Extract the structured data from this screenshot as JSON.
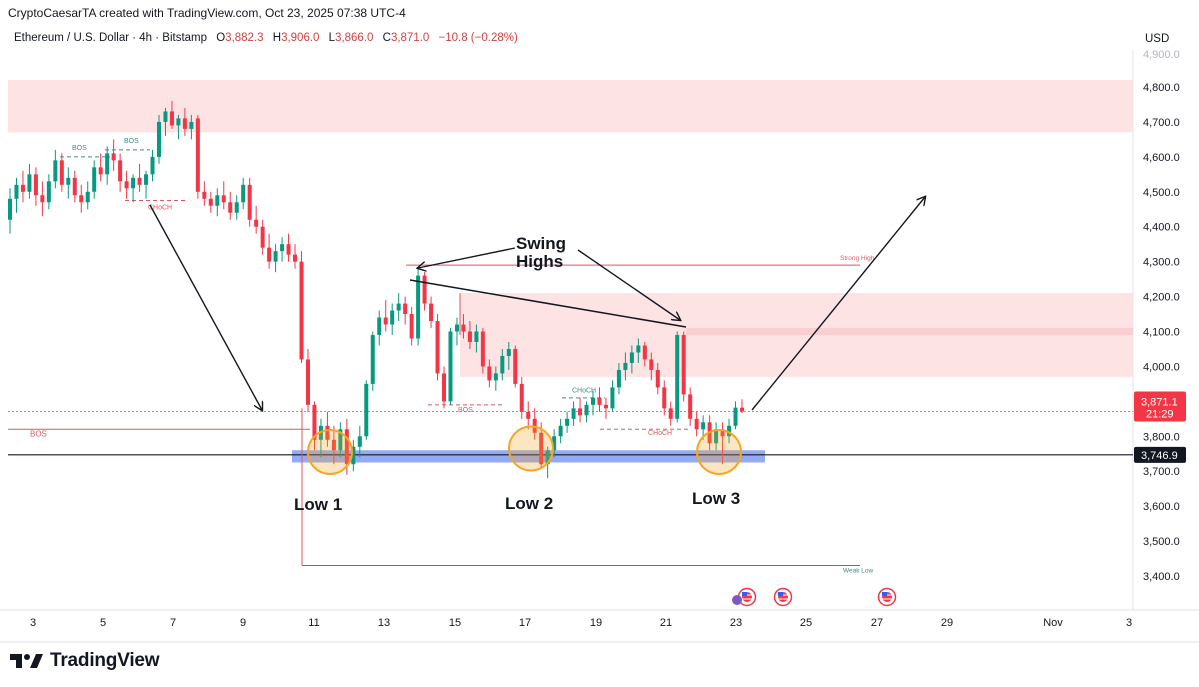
{
  "attribution": "CryptoCaesarTA created with TradingView.com, Oct 23, 2025 07:38 UTC-4",
  "symbol": {
    "name": "Ethereum / U.S. Dollar · 4h · Bitstamp",
    "open_label": "O",
    "open": "3,882.3",
    "high_label": "H",
    "high": "3,906.0",
    "low_label": "L",
    "low": "3,866.0",
    "close_label": "C",
    "close": "3,871.0",
    "change": "−10.8 (−0.28%)"
  },
  "currency": "USD",
  "logo_text": "TradingView",
  "colors": {
    "up": "#089981",
    "down": "#f23645",
    "zone": "#fde3e4",
    "support": "#6f8ef0",
    "circle": "#f5a623"
  },
  "chart_data": {
    "type": "candlestick",
    "ylim": [
      3350,
      4860
    ],
    "y_ticks": [
      "3,400.0",
      "3,500.0",
      "3,600.0",
      "3,700.0",
      "3,800.0",
      "3,900.0",
      "4,000.0",
      "4,100.0",
      "4,200.0",
      "4,300.0",
      "4,400.0",
      "4,500.0",
      "4,600.0",
      "4,700.0",
      "4,800.0"
    ],
    "x_ticks": [
      "3",
      "5",
      "7",
      "9",
      "11",
      "13",
      "15",
      "17",
      "19",
      "21",
      "23",
      "25",
      "27",
      "29",
      "Nov",
      "3"
    ],
    "price_labels": {
      "last_price": "3,871.1",
      "countdown": "21:29",
      "support_level": "3,746.9"
    },
    "annotations": {
      "swing_highs_line1": "Swing",
      "swing_highs_line2": "Highs",
      "low1": "Low 1",
      "low2": "Low 2",
      "low3": "Low 3",
      "bos": "BOS",
      "choch": "CHoCH",
      "strong_high": "Strong High",
      "weak_low": "Weak Low"
    },
    "levels": {
      "strong_high": 4290,
      "weak_low": 3430,
      "support": 3746.9,
      "last": 3871.1
    },
    "zones": [
      {
        "from": 4670,
        "to": 4820
      },
      {
        "from": 3970,
        "to": 4210
      }
    ],
    "candles": [
      {
        "o": 4420,
        "h": 4510,
        "l": 4380,
        "c": 4480
      },
      {
        "o": 4480,
        "h": 4540,
        "l": 4440,
        "c": 4520
      },
      {
        "o": 4520,
        "h": 4560,
        "l": 4470,
        "c": 4500
      },
      {
        "o": 4500,
        "h": 4580,
        "l": 4480,
        "c": 4550
      },
      {
        "o": 4550,
        "h": 4570,
        "l": 4460,
        "c": 4490
      },
      {
        "o": 4490,
        "h": 4530,
        "l": 4430,
        "c": 4470
      },
      {
        "o": 4470,
        "h": 4550,
        "l": 4450,
        "c": 4530
      },
      {
        "o": 4530,
        "h": 4620,
        "l": 4510,
        "c": 4590
      },
      {
        "o": 4590,
        "h": 4610,
        "l": 4500,
        "c": 4520
      },
      {
        "o": 4520,
        "h": 4570,
        "l": 4480,
        "c": 4540
      },
      {
        "o": 4540,
        "h": 4560,
        "l": 4470,
        "c": 4490
      },
      {
        "o": 4490,
        "h": 4520,
        "l": 4440,
        "c": 4470
      },
      {
        "o": 4470,
        "h": 4530,
        "l": 4450,
        "c": 4500
      },
      {
        "o": 4500,
        "h": 4590,
        "l": 4480,
        "c": 4570
      },
      {
        "o": 4570,
        "h": 4610,
        "l": 4530,
        "c": 4550
      },
      {
        "o": 4550,
        "h": 4630,
        "l": 4520,
        "c": 4610
      },
      {
        "o": 4610,
        "h": 4650,
        "l": 4560,
        "c": 4590
      },
      {
        "o": 4590,
        "h": 4610,
        "l": 4500,
        "c": 4530
      },
      {
        "o": 4530,
        "h": 4560,
        "l": 4480,
        "c": 4510
      },
      {
        "o": 4510,
        "h": 4550,
        "l": 4470,
        "c": 4540
      },
      {
        "o": 4540,
        "h": 4580,
        "l": 4500,
        "c": 4520
      },
      {
        "o": 4520,
        "h": 4560,
        "l": 4480,
        "c": 4550
      },
      {
        "o": 4550,
        "h": 4620,
        "l": 4530,
        "c": 4600
      },
      {
        "o": 4600,
        "h": 4720,
        "l": 4580,
        "c": 4700
      },
      {
        "o": 4700,
        "h": 4740,
        "l": 4660,
        "c": 4730
      },
      {
        "o": 4730,
        "h": 4760,
        "l": 4680,
        "c": 4690
      },
      {
        "o": 4690,
        "h": 4720,
        "l": 4650,
        "c": 4710
      },
      {
        "o": 4710,
        "h": 4740,
        "l": 4660,
        "c": 4680
      },
      {
        "o": 4680,
        "h": 4720,
        "l": 4650,
        "c": 4700
      },
      {
        "o": 4710,
        "h": 4720,
        "l": 4480,
        "c": 4500
      },
      {
        "o": 4500,
        "h": 4530,
        "l": 4460,
        "c": 4480
      },
      {
        "o": 4480,
        "h": 4500,
        "l": 4440,
        "c": 4460
      },
      {
        "o": 4460,
        "h": 4510,
        "l": 4430,
        "c": 4490
      },
      {
        "o": 4490,
        "h": 4530,
        "l": 4450,
        "c": 4470
      },
      {
        "o": 4470,
        "h": 4500,
        "l": 4420,
        "c": 4440
      },
      {
        "o": 4440,
        "h": 4490,
        "l": 4420,
        "c": 4470
      },
      {
        "o": 4470,
        "h": 4540,
        "l": 4450,
        "c": 4520
      },
      {
        "o": 4520,
        "h": 4540,
        "l": 4400,
        "c": 4420
      },
      {
        "o": 4420,
        "h": 4460,
        "l": 4380,
        "c": 4400
      },
      {
        "o": 4400,
        "h": 4420,
        "l": 4320,
        "c": 4340
      },
      {
        "o": 4340,
        "h": 4380,
        "l": 4280,
        "c": 4300
      },
      {
        "o": 4300,
        "h": 4350,
        "l": 4270,
        "c": 4330
      },
      {
        "o": 4330,
        "h": 4370,
        "l": 4300,
        "c": 4350
      },
      {
        "o": 4350,
        "h": 4380,
        "l": 4300,
        "c": 4320
      },
      {
        "o": 4320,
        "h": 4350,
        "l": 4280,
        "c": 4300
      },
      {
        "o": 4300,
        "h": 4330,
        "l": 4010,
        "c": 4020
      },
      {
        "o": 4020,
        "h": 4050,
        "l": 3870,
        "c": 3890
      },
      {
        "o": 3890,
        "h": 3900,
        "l": 3760,
        "c": 3790
      },
      {
        "o": 3790,
        "h": 3850,
        "l": 3740,
        "c": 3830
      },
      {
        "o": 3830,
        "h": 3870,
        "l": 3770,
        "c": 3790
      },
      {
        "o": 3790,
        "h": 3830,
        "l": 3720,
        "c": 3760
      },
      {
        "o": 3760,
        "h": 3840,
        "l": 3740,
        "c": 3820
      },
      {
        "o": 3820,
        "h": 3850,
        "l": 3690,
        "c": 3720
      },
      {
        "o": 3720,
        "h": 3790,
        "l": 3700,
        "c": 3770
      },
      {
        "o": 3770,
        "h": 3830,
        "l": 3740,
        "c": 3800
      },
      {
        "o": 3800,
        "h": 3960,
        "l": 3790,
        "c": 3950
      },
      {
        "o": 3950,
        "h": 4100,
        "l": 3930,
        "c": 4090
      },
      {
        "o": 4090,
        "h": 4160,
        "l": 4060,
        "c": 4140
      },
      {
        "o": 4140,
        "h": 4190,
        "l": 4100,
        "c": 4120
      },
      {
        "o": 4120,
        "h": 4180,
        "l": 4090,
        "c": 4160
      },
      {
        "o": 4160,
        "h": 4210,
        "l": 4130,
        "c": 4180
      },
      {
        "o": 4180,
        "h": 4200,
        "l": 4120,
        "c": 4150
      },
      {
        "o": 4150,
        "h": 4170,
        "l": 4060,
        "c": 4080
      },
      {
        "o": 4080,
        "h": 4280,
        "l": 4060,
        "c": 4260
      },
      {
        "o": 4260,
        "h": 4270,
        "l": 4160,
        "c": 4180
      },
      {
        "o": 4180,
        "h": 4200,
        "l": 4110,
        "c": 4130
      },
      {
        "o": 4130,
        "h": 4150,
        "l": 3960,
        "c": 3980
      },
      {
        "o": 3980,
        "h": 4000,
        "l": 3880,
        "c": 3900
      },
      {
        "o": 3900,
        "h": 4110,
        "l": 3890,
        "c": 4100
      },
      {
        "o": 4100,
        "h": 4140,
        "l": 4060,
        "c": 4120
      },
      {
        "o": 4120,
        "h": 4150,
        "l": 4080,
        "c": 4100
      },
      {
        "o": 4100,
        "h": 4130,
        "l": 4050,
        "c": 4070
      },
      {
        "o": 4070,
        "h": 4120,
        "l": 4040,
        "c": 4100
      },
      {
        "o": 4100,
        "h": 4110,
        "l": 3980,
        "c": 4000
      },
      {
        "o": 4000,
        "h": 4020,
        "l": 3940,
        "c": 3960
      },
      {
        "o": 3960,
        "h": 4000,
        "l": 3930,
        "c": 3980
      },
      {
        "o": 3980,
        "h": 4050,
        "l": 3960,
        "c": 4030
      },
      {
        "o": 4030,
        "h": 4070,
        "l": 3990,
        "c": 4050
      },
      {
        "o": 4050,
        "h": 4060,
        "l": 3940,
        "c": 3950
      },
      {
        "o": 3950,
        "h": 3970,
        "l": 3850,
        "c": 3870
      },
      {
        "o": 3870,
        "h": 3900,
        "l": 3820,
        "c": 3850
      },
      {
        "o": 3850,
        "h": 3880,
        "l": 3790,
        "c": 3810
      },
      {
        "o": 3810,
        "h": 3840,
        "l": 3710,
        "c": 3720
      },
      {
        "o": 3720,
        "h": 3770,
        "l": 3680,
        "c": 3760
      },
      {
        "o": 3760,
        "h": 3820,
        "l": 3740,
        "c": 3800
      },
      {
        "o": 3800,
        "h": 3850,
        "l": 3780,
        "c": 3830
      },
      {
        "o": 3830,
        "h": 3870,
        "l": 3810,
        "c": 3850
      },
      {
        "o": 3850,
        "h": 3900,
        "l": 3830,
        "c": 3880
      },
      {
        "o": 3880,
        "h": 3910,
        "l": 3840,
        "c": 3860
      },
      {
        "o": 3860,
        "h": 3900,
        "l": 3840,
        "c": 3890
      },
      {
        "o": 3890,
        "h": 3930,
        "l": 3860,
        "c": 3910
      },
      {
        "o": 3910,
        "h": 3940,
        "l": 3870,
        "c": 3890
      },
      {
        "o": 3890,
        "h": 3910,
        "l": 3850,
        "c": 3880
      },
      {
        "o": 3880,
        "h": 3960,
        "l": 3870,
        "c": 3940
      },
      {
        "o": 3940,
        "h": 4010,
        "l": 3920,
        "c": 3990
      },
      {
        "o": 3990,
        "h": 4040,
        "l": 3960,
        "c": 4010
      },
      {
        "o": 4010,
        "h": 4060,
        "l": 3980,
        "c": 4040
      },
      {
        "o": 4040,
        "h": 4080,
        "l": 4010,
        "c": 4060
      },
      {
        "o": 4060,
        "h": 4070,
        "l": 4000,
        "c": 4020
      },
      {
        "o": 4020,
        "h": 4040,
        "l": 3960,
        "c": 3990
      },
      {
        "o": 3990,
        "h": 4010,
        "l": 3920,
        "c": 3940
      },
      {
        "o": 3940,
        "h": 3960,
        "l": 3860,
        "c": 3880
      },
      {
        "o": 3880,
        "h": 3900,
        "l": 3830,
        "c": 3850
      },
      {
        "o": 3850,
        "h": 4100,
        "l": 3840,
        "c": 4090
      },
      {
        "o": 4090,
        "h": 4100,
        "l": 3900,
        "c": 3920
      },
      {
        "o": 3920,
        "h": 3940,
        "l": 3830,
        "c": 3850
      },
      {
        "o": 3850,
        "h": 3870,
        "l": 3800,
        "c": 3820
      },
      {
        "o": 3820,
        "h": 3860,
        "l": 3790,
        "c": 3840
      },
      {
        "o": 3840,
        "h": 3860,
        "l": 3760,
        "c": 3780
      },
      {
        "o": 3780,
        "h": 3840,
        "l": 3760,
        "c": 3820
      },
      {
        "o": 3820,
        "h": 3840,
        "l": 3720,
        "c": 3800
      },
      {
        "o": 3800,
        "h": 3850,
        "l": 3780,
        "c": 3830
      },
      {
        "o": 3830,
        "h": 3900,
        "l": 3820,
        "c": 3882
      },
      {
        "o": 3882,
        "h": 3906,
        "l": 3866,
        "c": 3871
      }
    ]
  }
}
